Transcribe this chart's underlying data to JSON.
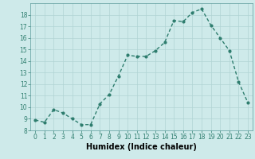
{
  "x": [
    0,
    1,
    2,
    3,
    4,
    5,
    6,
    7,
    8,
    9,
    10,
    11,
    12,
    13,
    14,
    15,
    16,
    17,
    18,
    19,
    20,
    21,
    22,
    23
  ],
  "y": [
    8.9,
    8.7,
    9.8,
    9.5,
    9.0,
    8.5,
    8.5,
    10.3,
    11.1,
    12.7,
    14.5,
    14.4,
    14.4,
    14.9,
    15.6,
    17.5,
    17.4,
    18.2,
    18.5,
    17.1,
    16.0,
    14.9,
    12.2,
    10.4
  ],
  "ylim": [
    8,
    19
  ],
  "yticks": [
    8,
    9,
    10,
    11,
    12,
    13,
    14,
    15,
    16,
    17,
    18
  ],
  "xlim": [
    -0.5,
    23.5
  ],
  "xticks": [
    0,
    1,
    2,
    3,
    4,
    5,
    6,
    7,
    8,
    9,
    10,
    11,
    12,
    13,
    14,
    15,
    16,
    17,
    18,
    19,
    20,
    21,
    22,
    23
  ],
  "xlabel": "Humidex (Indice chaleur)",
  "line_color": "#2e7d6e",
  "marker": "o",
  "marker_size": 2.0,
  "line_width": 1.0,
  "bg_color": "#ceeaea",
  "grid_color": "#b0d4d4",
  "tick_fontsize": 5.5,
  "xlabel_fontsize": 7.0,
  "xlabel_fontweight": "bold"
}
